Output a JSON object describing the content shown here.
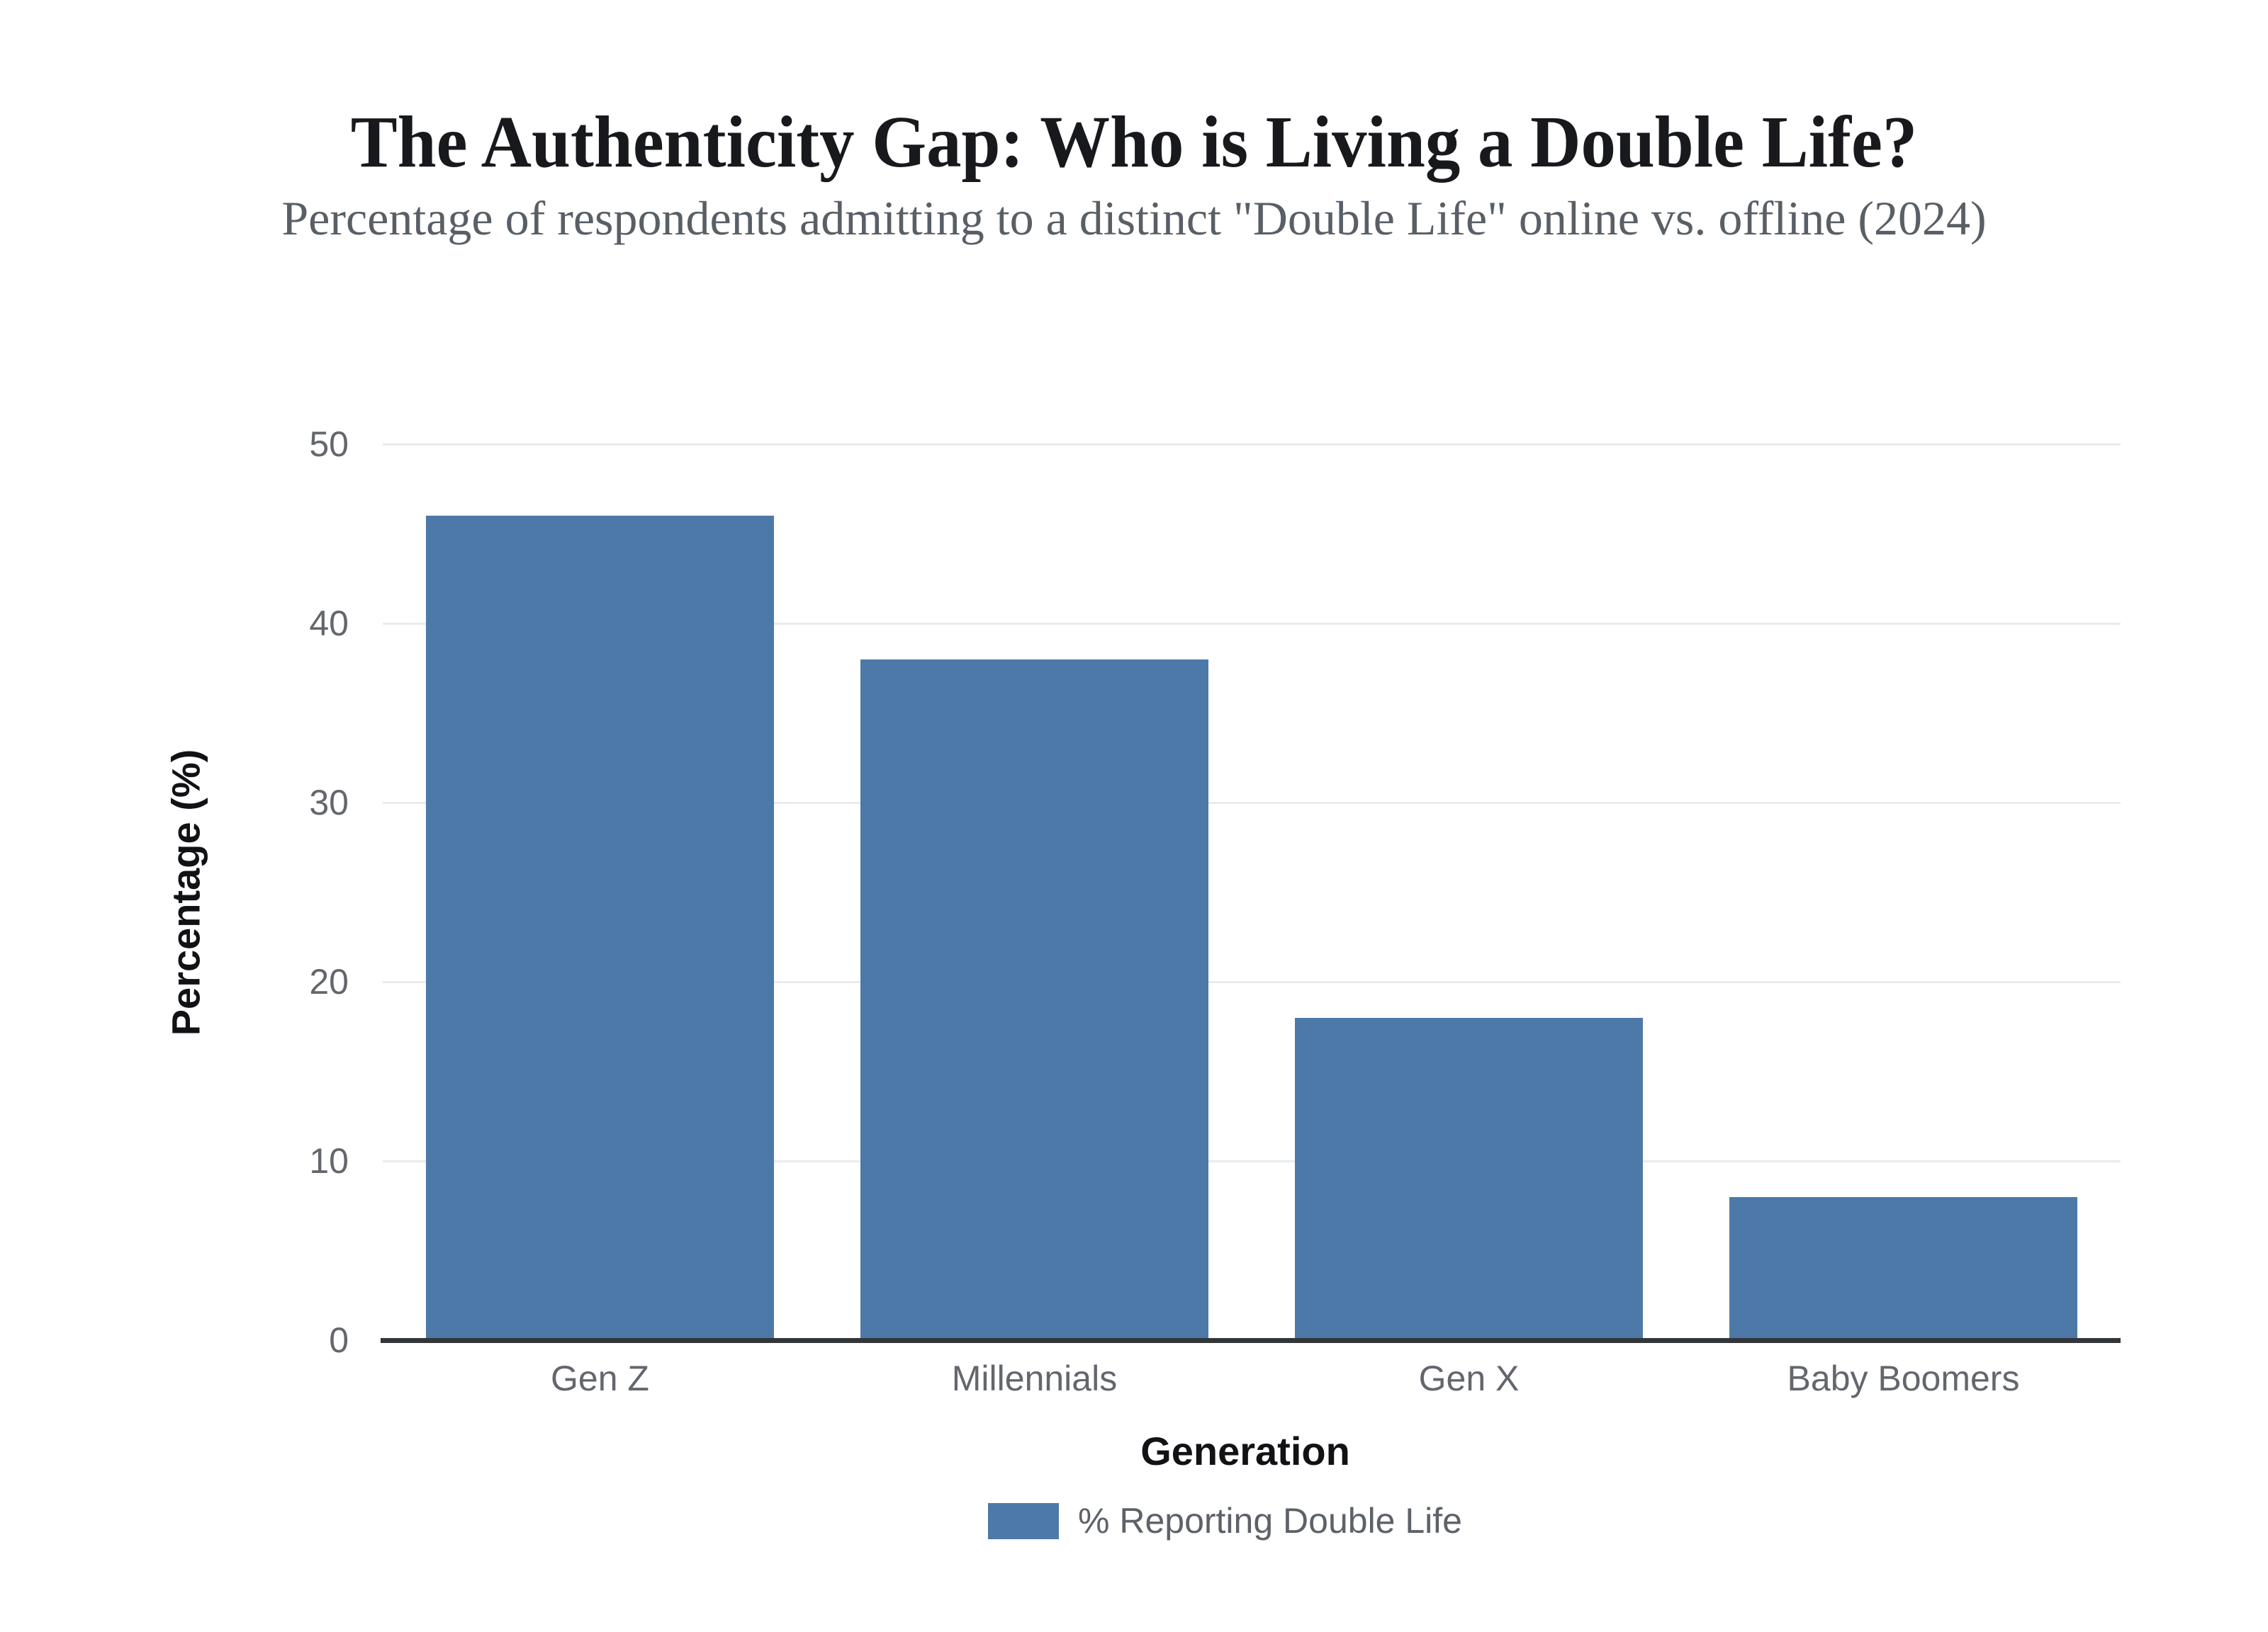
{
  "chart_data": {
    "type": "bar",
    "title": "The Authenticity Gap: Who is Living a Double Life?",
    "subtitle": "Percentage of respondents admitting to a distinct \"Double Life\" online vs. offline (2024)",
    "categories": [
      "Gen Z",
      "Millennials",
      "Gen X",
      "Baby Boomers"
    ],
    "values": [
      46,
      38,
      18,
      8
    ],
    "series_name": "% Reporting Double Life",
    "xlabel": "Generation",
    "ylabel": "Percentage (%)",
    "ylim": [
      0,
      50
    ],
    "yticks": [
      0,
      10,
      20,
      30,
      40,
      50
    ],
    "grid": "horizontal",
    "legend_position": "bottom"
  },
  "colors": {
    "bar": "#4d79a8",
    "title": "#17191d",
    "subtitle": "#585f66",
    "tick_label": "#63676d",
    "axis_title": "#101215",
    "gridline": "#e9ebee",
    "axis_line": "#333639",
    "legend_text": "#5d6269",
    "background": "#ffffff"
  }
}
